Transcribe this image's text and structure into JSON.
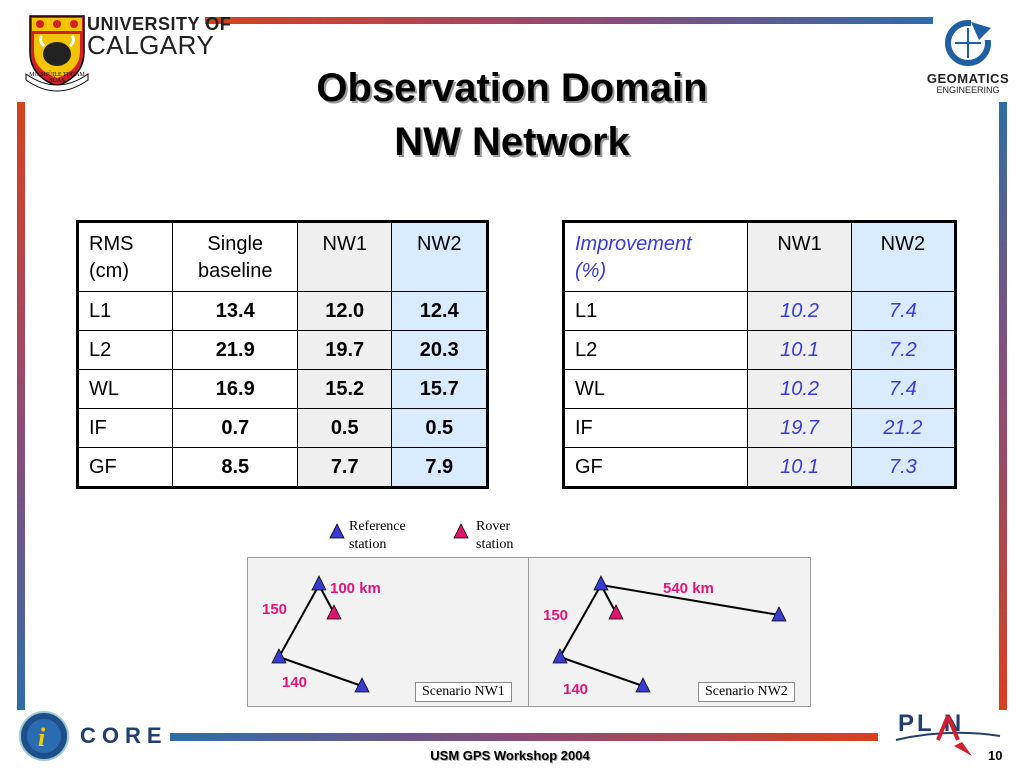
{
  "header": {
    "university_line1": "UNIVERSITY OF",
    "university_line2": "CALGARY",
    "seal_motto": "MO SHÙILE TOGAM SÙAS",
    "geomatics_line1": "GEOMATICS",
    "geomatics_line2": "ENGINEERING"
  },
  "title": {
    "line1": "Observation Domain",
    "line2": "NW Network"
  },
  "rms_table": {
    "headers": [
      "RMS\n(cm)",
      "Single\nbaseline",
      "NW1",
      "NW2"
    ],
    "rows": [
      [
        "L1",
        "13.4",
        "12.0",
        "12.4"
      ],
      [
        "L2",
        "21.9",
        "19.7",
        "20.3"
      ],
      [
        "WL",
        "16.9",
        "15.2",
        "15.7"
      ],
      [
        "IF",
        "0.7",
        "0.5",
        "0.5"
      ],
      [
        "GF",
        "8.5",
        "7.7",
        "7.9"
      ]
    ]
  },
  "improvement_table": {
    "headers": [
      "Improvement\n(%)",
      "NW1",
      "NW2"
    ],
    "rows": [
      [
        "L1",
        "10.2",
        "7.4"
      ],
      [
        "L2",
        "10.1",
        "7.2"
      ],
      [
        "WL",
        "10.2",
        "7.4"
      ],
      [
        "IF",
        "19.7",
        "21.2"
      ],
      [
        "GF",
        "10.1",
        "7.3"
      ]
    ]
  },
  "legend": {
    "reference": "Reference\nstation",
    "rover": "Rover\nstation",
    "reference_color": "#3a3ad0",
    "rover_color": "#e0156e"
  },
  "scenarios": [
    {
      "label": "Scenario NW1",
      "d1": "100 km",
      "d2": "150",
      "d3": "140"
    },
    {
      "label": "Scenario NW2",
      "d1": "540 km",
      "d2": "150",
      "d3": "140"
    }
  ],
  "footer": {
    "core_text": "CORE",
    "plan_text": "PL N",
    "workshop": "USM GPS Workshop 2004",
    "page": "10"
  }
}
